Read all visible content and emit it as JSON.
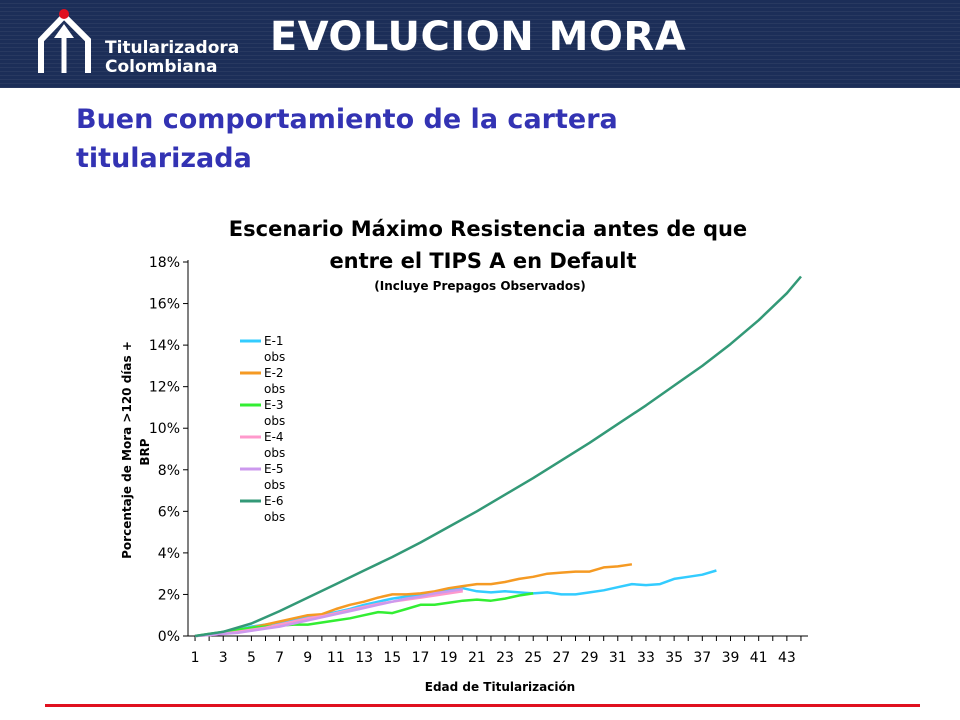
{
  "header": {
    "logo_line1": "Titularizadora",
    "logo_line2": "Colombiana",
    "title": "EVOLUCION MORA"
  },
  "subtitle": {
    "line1": "Buen comportamiento de la cartera",
    "line2": "titularizada"
  },
  "colors": {
    "header_bg": "#1c2e58",
    "subtitle": "#3333b3",
    "footer_line": "#e0101f"
  },
  "chart_data": {
    "type": "line",
    "title_line1": "Escenario Máximo Resistencia antes de que",
    "title_line2": "entre el TIPS A en Default",
    "subtitle": "(Incluye Prepagos Observados)",
    "xlabel": "Edad de Titularización",
    "ylabel_line1": "Porcentaje de Mora >120 días +",
    "ylabel_line2": "BRP",
    "xlim": [
      1,
      44
    ],
    "ylim": [
      0,
      18
    ],
    "x_ticks": [
      "1",
      "3",
      "5",
      "7",
      "9",
      "11",
      "13",
      "15",
      "17",
      "19",
      "21",
      "23",
      "25",
      "27",
      "29",
      "31",
      "33",
      "35",
      "37",
      "39",
      "41",
      "43"
    ],
    "y_ticks": [
      "0%",
      "2%",
      "4%",
      "6%",
      "8%",
      "10%",
      "12%",
      "14%",
      "16%",
      "18%"
    ],
    "grid": false,
    "legend_position": "left, inside",
    "series": [
      {
        "name": "E-1 obs",
        "color": "#33ccff",
        "x": [
          1,
          2,
          3,
          4,
          5,
          6,
          7,
          8,
          9,
          10,
          11,
          12,
          13,
          14,
          15,
          16,
          17,
          18,
          19,
          20,
          21,
          22,
          23,
          24,
          25,
          26,
          27,
          28,
          29,
          30,
          31,
          32,
          33,
          34,
          35,
          36,
          37,
          38
        ],
        "y": [
          0,
          0.05,
          0.2,
          0.3,
          0.45,
          0.55,
          0.65,
          0.8,
          0.9,
          1.0,
          1.15,
          1.3,
          1.5,
          1.65,
          1.8,
          1.9,
          2.0,
          2.1,
          2.2,
          2.3,
          2.15,
          2.1,
          2.15,
          2.1,
          2.05,
          2.1,
          2.0,
          2.0,
          2.1,
          2.2,
          2.35,
          2.5,
          2.45,
          2.5,
          2.75,
          2.85,
          2.95,
          3.15
        ]
      },
      {
        "name": "E-2 obs",
        "color": "#f59a23",
        "x": [
          1,
          2,
          3,
          4,
          5,
          6,
          7,
          8,
          9,
          10,
          11,
          12,
          13,
          14,
          15,
          16,
          17,
          18,
          19,
          20,
          21,
          22,
          23,
          24,
          25,
          26,
          27,
          28,
          29,
          30,
          31,
          32
        ],
        "y": [
          0,
          0.05,
          0.15,
          0.3,
          0.4,
          0.55,
          0.7,
          0.85,
          1.0,
          1.05,
          1.3,
          1.5,
          1.65,
          1.85,
          2.0,
          2.0,
          2.05,
          2.15,
          2.3,
          2.4,
          2.5,
          2.5,
          2.6,
          2.75,
          2.85,
          3.0,
          3.05,
          3.1,
          3.1,
          3.3,
          3.35,
          3.45
        ]
      },
      {
        "name": "E-3 obs",
        "color": "#33ee33",
        "x": [
          1,
          2,
          3,
          4,
          5,
          6,
          7,
          8,
          9,
          10,
          11,
          12,
          13,
          14,
          15,
          16,
          17,
          18,
          19,
          20,
          21,
          22,
          23,
          24,
          25
        ],
        "y": [
          0,
          0.1,
          0.2,
          0.3,
          0.4,
          0.45,
          0.5,
          0.55,
          0.55,
          0.65,
          0.75,
          0.85,
          1.0,
          1.15,
          1.1,
          1.3,
          1.5,
          1.5,
          1.6,
          1.7,
          1.75,
          1.7,
          1.8,
          1.95,
          2.05
        ]
      },
      {
        "name": "E-4 obs",
        "color": "#ff99cc",
        "x": [
          1,
          2,
          3,
          4,
          5,
          6,
          7,
          8,
          9,
          10,
          11,
          12,
          13,
          14,
          15,
          16,
          17,
          18,
          19,
          20
        ],
        "y": [
          0,
          0.05,
          0.1,
          0.2,
          0.3,
          0.4,
          0.55,
          0.7,
          0.85,
          0.95,
          1.1,
          1.25,
          1.4,
          1.55,
          1.65,
          1.75,
          1.85,
          1.95,
          2.05,
          2.15
        ]
      },
      {
        "name": "E-5 obs",
        "color": "#cc99ee",
        "x": [
          1,
          2,
          3,
          4,
          5,
          6,
          7,
          8,
          9,
          10,
          11,
          12,
          13,
          14,
          15,
          16,
          17,
          18,
          19,
          20
        ],
        "y": [
          0,
          0.05,
          0.1,
          0.15,
          0.25,
          0.35,
          0.45,
          0.6,
          0.75,
          0.9,
          1.05,
          1.2,
          1.35,
          1.5,
          1.65,
          1.8,
          1.9,
          2.05,
          2.15,
          2.25
        ]
      },
      {
        "name": "E-6 obs",
        "color": "#339977",
        "x": [
          1,
          3,
          5,
          7,
          9,
          11,
          13,
          15,
          17,
          19,
          21,
          23,
          25,
          27,
          29,
          31,
          33,
          35,
          37,
          39,
          41,
          43,
          44
        ],
        "y": [
          0,
          0.2,
          0.6,
          1.2,
          1.85,
          2.5,
          3.15,
          3.8,
          4.5,
          5.25,
          6.0,
          6.8,
          7.6,
          8.45,
          9.3,
          10.2,
          11.1,
          12.05,
          13.0,
          14.05,
          15.2,
          16.5,
          17.3
        ]
      }
    ]
  }
}
